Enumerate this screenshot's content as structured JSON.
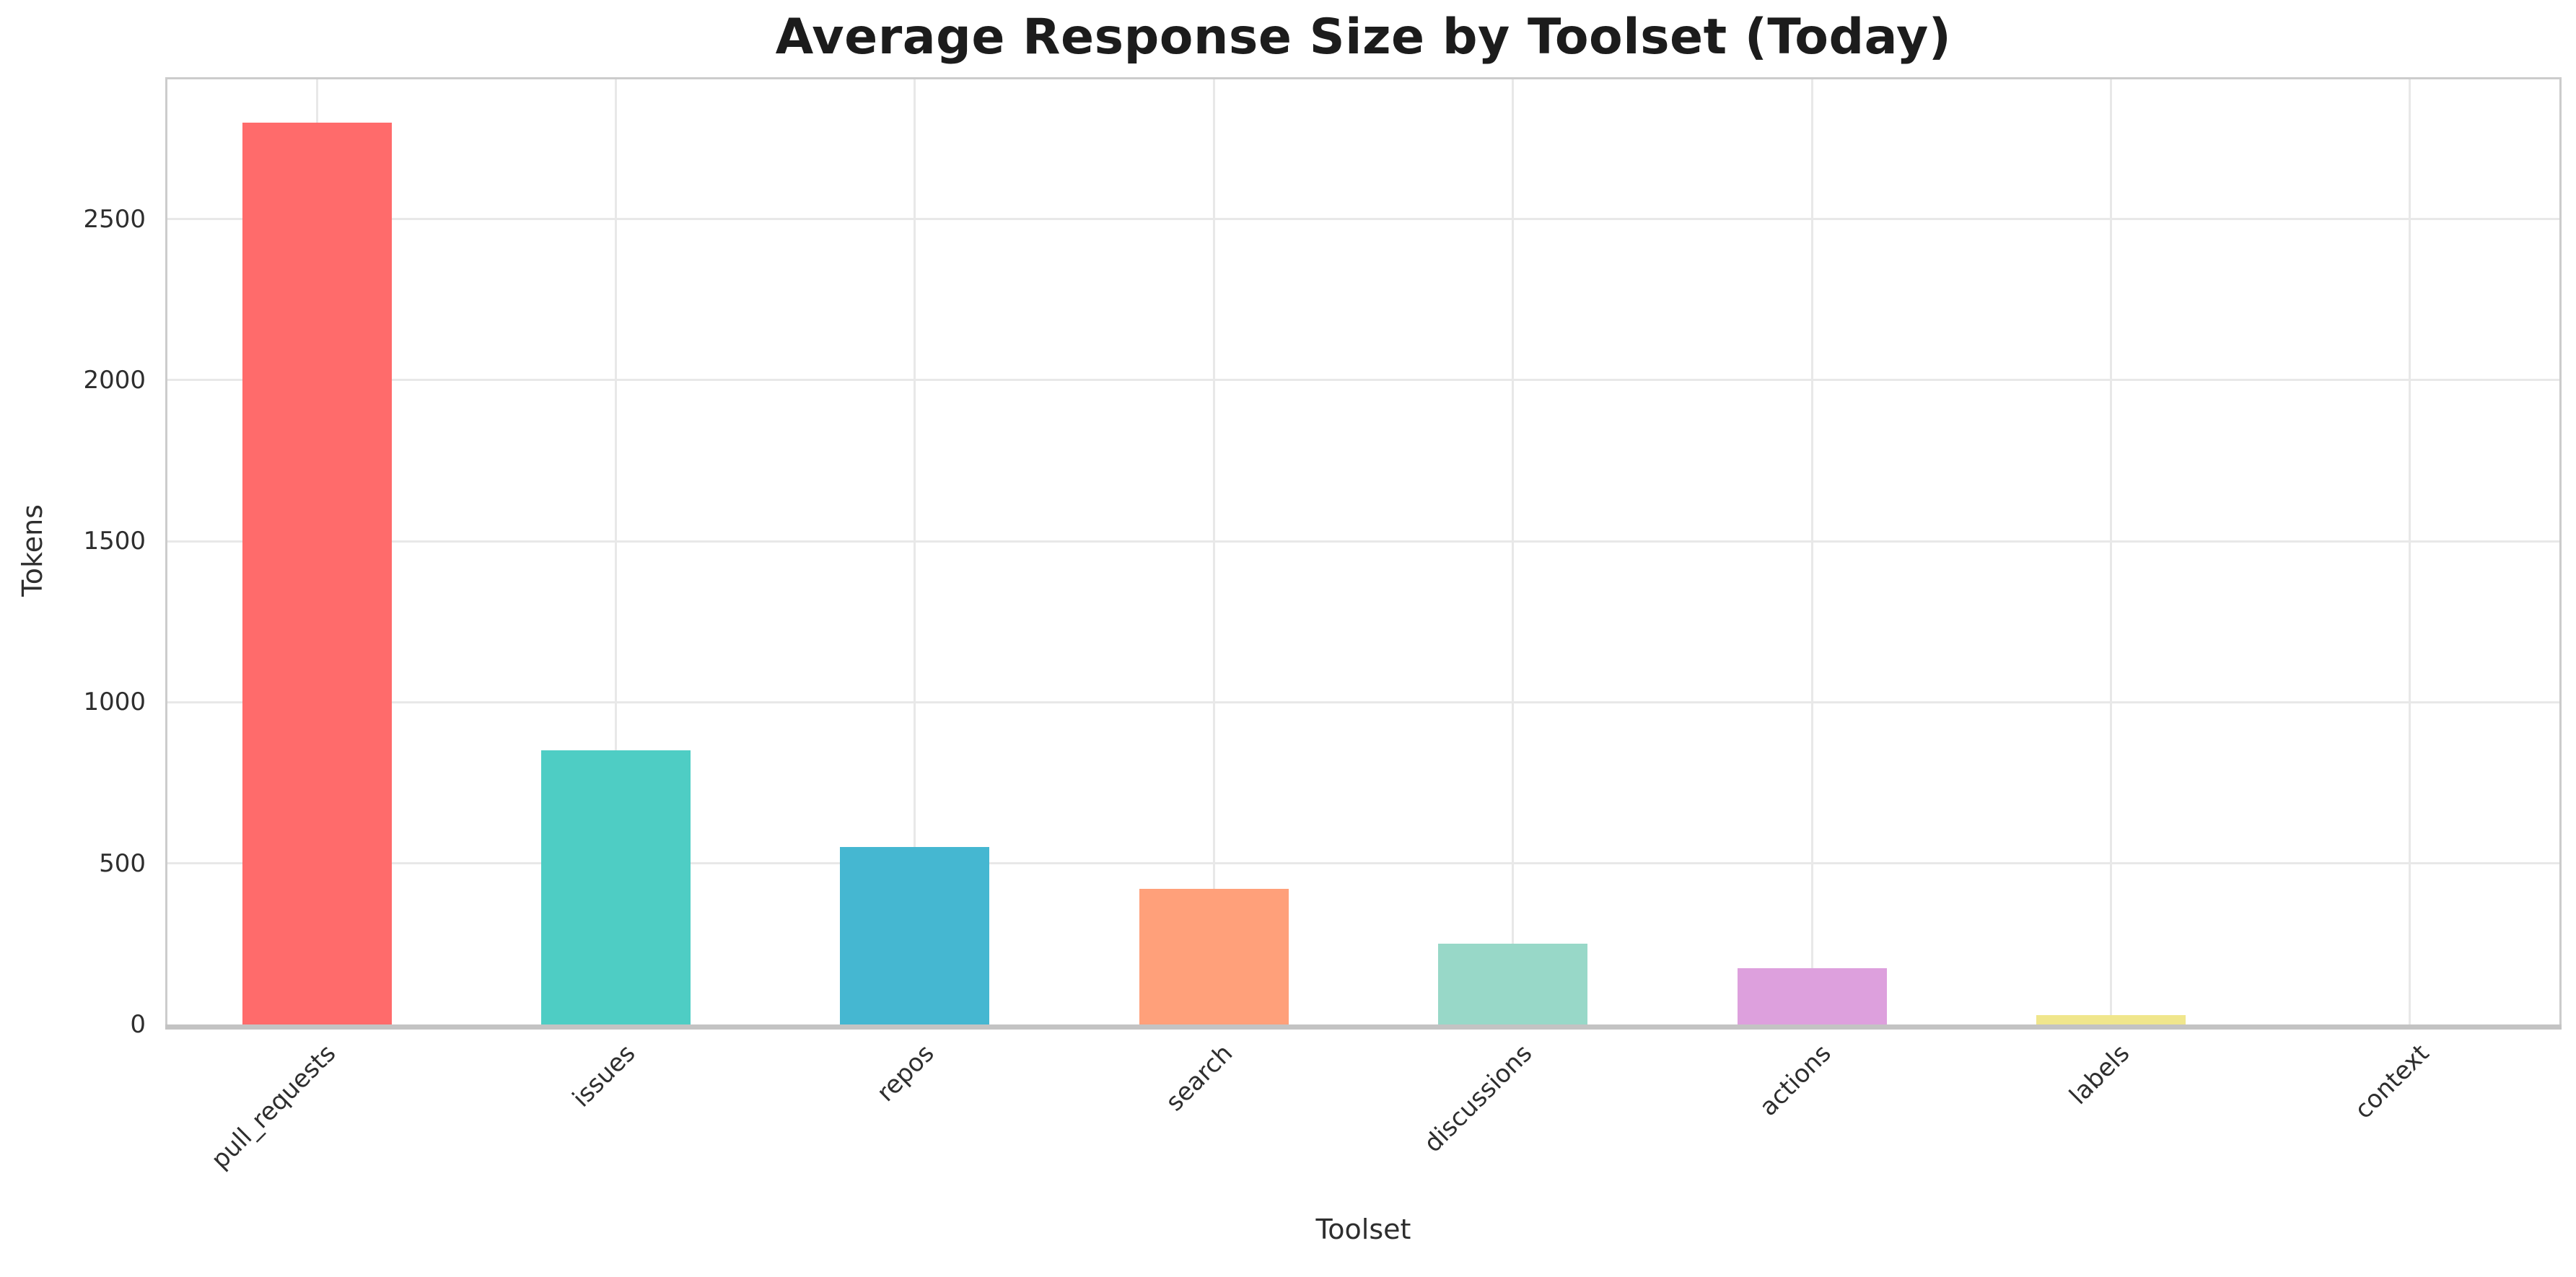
{
  "chart_data": {
    "type": "bar",
    "title": "Average Response Size by Toolset (Today)",
    "xlabel": "Toolset",
    "ylabel": "Tokens",
    "categories": [
      "pull_requests",
      "issues",
      "repos",
      "search",
      "discussions",
      "actions",
      "labels",
      "context"
    ],
    "values": [
      2800,
      850,
      550,
      420,
      250,
      175,
      30,
      0
    ],
    "bar_colors": [
      "#FF6B6B",
      "#4ECDC4",
      "#45B7D1",
      "#FFA07A",
      "#98D8C8",
      "#DDA0DD",
      "#F0E68C",
      "#D3D3D3"
    ],
    "ylim": [
      0,
      2940
    ],
    "yticks": [
      0,
      500,
      1000,
      1500,
      2000,
      2500
    ],
    "x_tick_rotation_deg": 45,
    "grid": "both",
    "legend": "none",
    "colors": {
      "background": "#FFFFFF",
      "grid": "#E8E8E8",
      "spine": "#CCCCCC",
      "bottom_axis": "#C3C3C3",
      "tick_text": "#2E2E2E",
      "title_text": "#1C1C1C"
    }
  }
}
